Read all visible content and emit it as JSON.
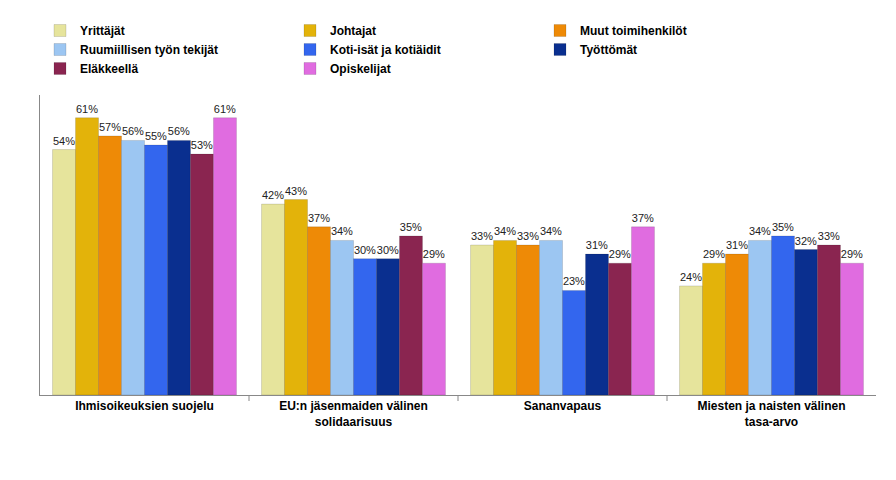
{
  "chart_data": {
    "type": "bar",
    "categories": [
      "Ihmisoikeuksien suojelu",
      "EU:n jäsenmaiden välinen\nsolidaarisuus",
      "Sananvapaus",
      "Miesten ja naisten välinen\ntasa-arvo"
    ],
    "series": [
      {
        "name": "Yrittäjät",
        "color": "#e6e49c",
        "values": [
          54,
          42,
          33,
          24
        ],
        "value_labels": [
          "54%",
          "42%",
          "33%",
          "24%"
        ]
      },
      {
        "name": "Johtajat",
        "color": "#e3b30a",
        "values": [
          61,
          43,
          34,
          29
        ],
        "value_labels": [
          "61%",
          "43%",
          "34%",
          "29%"
        ]
      },
      {
        "name": "Muut toimihenkilöt",
        "color": "#ee8a06",
        "values": [
          57,
          37,
          33,
          31
        ],
        "value_labels": [
          "57%",
          "37%",
          "33%",
          "31%"
        ]
      },
      {
        "name": "Ruumiillisen työn tekijät",
        "color": "#9cc6f2",
        "values": [
          56,
          34,
          34,
          34
        ],
        "value_labels": [
          "56%",
          "34%",
          "34%",
          "34%"
        ]
      },
      {
        "name": "Koti-isät ja kotiäidit",
        "color": "#3366ee",
        "values": [
          55,
          30,
          23,
          35
        ],
        "value_labels": [
          "55%",
          "30%",
          "23%",
          "35%"
        ]
      },
      {
        "name": "Työttömät",
        "color": "#0a2f8f",
        "values": [
          56,
          30,
          31,
          32
        ],
        "value_labels": [
          "56%",
          "30%",
          "31%",
          "32%"
        ]
      },
      {
        "name": "Eläkkeellä",
        "color": "#8a2550",
        "values": [
          53,
          35,
          29,
          33
        ],
        "value_labels": [
          "53%",
          "35%",
          "29%",
          "33%"
        ]
      },
      {
        "name": "Opiskelijat",
        "color": "#e06ce0",
        "values": [
          61,
          29,
          37,
          29
        ],
        "value_labels": [
          "61%",
          "29%",
          "37%",
          "29%"
        ]
      }
    ],
    "ylim": [
      0,
      66
    ],
    "yticks": [
      0,
      66
    ],
    "tick_labels": "x",
    "data_labels": true,
    "legend": "top",
    "grid": false
  }
}
